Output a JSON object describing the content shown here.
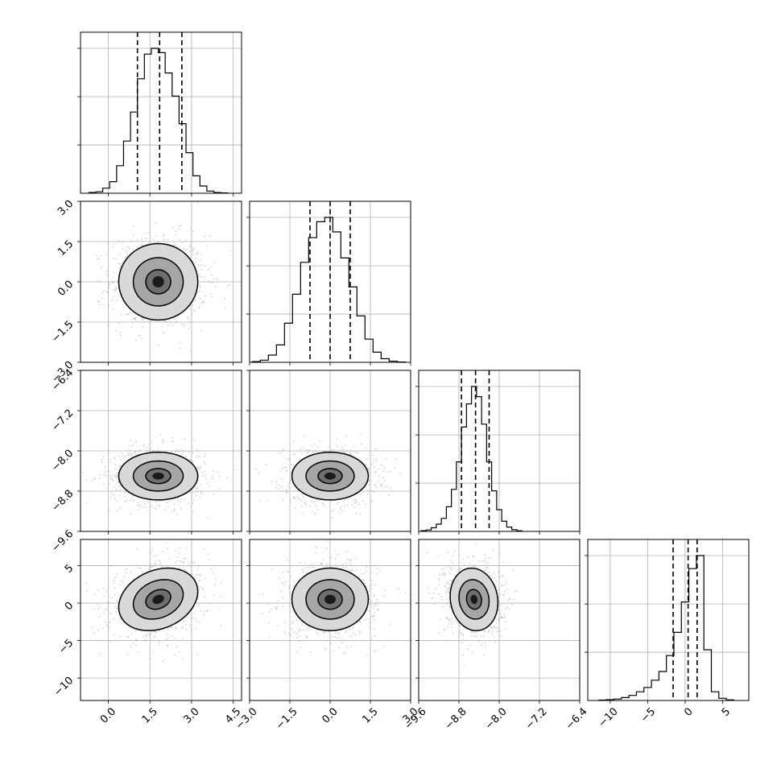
{
  "chart_data": {
    "type": "corner",
    "title": "",
    "parameters": [
      {
        "name": "",
        "range": [
          -1.0,
          4.8
        ],
        "ticks": [
          0.0,
          1.5,
          3.0,
          4.5
        ],
        "tick_labels": [
          "0.0",
          "1.5",
          "3.0",
          "4.5"
        ],
        "quantiles": [
          1.05,
          1.85,
          2.65
        ]
      },
      {
        "name": "",
        "range": [
          -3.0,
          3.0
        ],
        "ticks": [
          -3.0,
          -1.5,
          0.0,
          1.5,
          3.0
        ],
        "tick_labels": [
          "−3.0",
          "−1.5",
          "0.0",
          "1.5",
          "3.0"
        ],
        "quantiles": [
          -0.75,
          0.0,
          0.75
        ]
      },
      {
        "name": "",
        "range": [
          -9.6,
          -6.4
        ],
        "ticks": [
          -9.6,
          -8.8,
          -8.0,
          -7.2,
          -6.4
        ],
        "tick_labels": [
          "−9.6",
          "−8.8",
          "−8.0",
          "−7.2",
          "−6.4"
        ],
        "quantiles": [
          -8.75,
          -8.47,
          -8.2
        ]
      },
      {
        "name": "",
        "range": [
          -13.0,
          8.5
        ],
        "ticks": [
          -10,
          -5,
          0,
          5
        ],
        "tick_labels": [
          "−10",
          "−5",
          "0",
          "5"
        ],
        "quantiles": [
          -1.6,
          0.4,
          1.6
        ]
      }
    ],
    "histograms": [
      {
        "bin_edges": [
          -0.7,
          -0.45,
          -0.2,
          0.05,
          0.3,
          0.55,
          0.8,
          1.05,
          1.3,
          1.55,
          1.8,
          2.05,
          2.3,
          2.55,
          2.8,
          3.05,
          3.3,
          3.55,
          3.8,
          4.05,
          4.3
        ],
        "counts": [
          0.005,
          0.01,
          0.035,
          0.08,
          0.19,
          0.36,
          0.56,
          0.79,
          0.96,
          1.0,
          0.97,
          0.83,
          0.67,
          0.48,
          0.28,
          0.12,
          0.05,
          0.015,
          0.005,
          0.002
        ]
      },
      {
        "bin_edges": [
          -2.9,
          -2.6,
          -2.3,
          -2.0,
          -1.7,
          -1.4,
          -1.1,
          -0.8,
          -0.5,
          -0.2,
          0.1,
          0.4,
          0.7,
          1.0,
          1.3,
          1.6,
          1.9,
          2.2,
          2.5,
          2.8
        ],
        "counts": [
          0.005,
          0.015,
          0.05,
          0.12,
          0.27,
          0.47,
          0.69,
          0.86,
          0.97,
          1.0,
          0.9,
          0.72,
          0.52,
          0.32,
          0.16,
          0.07,
          0.025,
          0.008,
          0.002
        ]
      },
      {
        "bin_edges": [
          -9.55,
          -9.45,
          -9.35,
          -9.25,
          -9.15,
          -9.05,
          -8.95,
          -8.85,
          -8.75,
          -8.65,
          -8.55,
          -8.45,
          -8.35,
          -8.25,
          -8.15,
          -8.05,
          -7.95,
          -7.85,
          -7.75,
          -7.65,
          -7.55
        ],
        "counts": [
          0.005,
          0.01,
          0.025,
          0.05,
          0.09,
          0.17,
          0.29,
          0.48,
          0.72,
          0.88,
          1.0,
          0.93,
          0.74,
          0.48,
          0.28,
          0.15,
          0.07,
          0.03,
          0.012,
          0.004
        ]
      },
      {
        "bin_edges": [
          -11.5,
          -10.5,
          -9.5,
          -8.5,
          -7.5,
          -6.5,
          -5.5,
          -4.5,
          -3.5,
          -2.5,
          -1.5,
          -0.5,
          0.5,
          1.5,
          2.5,
          3.5,
          4.5,
          5.5,
          6.5
        ],
        "counts": [
          0.003,
          0.006,
          0.01,
          0.02,
          0.035,
          0.06,
          0.09,
          0.14,
          0.2,
          0.31,
          0.47,
          0.68,
          0.91,
          1.0,
          0.35,
          0.06,
          0.015,
          0.004
        ]
      }
    ],
    "panels_2d": [
      {
        "x": 0,
        "y": 1,
        "center": [
          1.8,
          0.0
        ],
        "sigma": [
          0.75,
          0.75
        ],
        "rho": 0.0,
        "contours": [
          0.6,
          1.2,
          1.9
        ]
      },
      {
        "x": 0,
        "y": 2,
        "center": [
          1.8,
          -8.5
        ],
        "sigma": [
          0.75,
          0.25
        ],
        "rho": 0.0,
        "contours": [
          0.6,
          1.2,
          1.9
        ]
      },
      {
        "x": 1,
        "y": 2,
        "center": [
          0.0,
          -8.5
        ],
        "sigma": [
          0.75,
          0.25
        ],
        "rho": 0.0,
        "contours": [
          0.6,
          1.2,
          1.9
        ]
      },
      {
        "x": 0,
        "y": 3,
        "center": [
          1.8,
          0.5
        ],
        "sigma": [
          0.75,
          2.2
        ],
        "rho": 0.25,
        "contours": [
          0.6,
          1.2,
          1.9
        ]
      },
      {
        "x": 1,
        "y": 3,
        "center": [
          0.0,
          0.5
        ],
        "sigma": [
          0.75,
          2.2
        ],
        "rho": 0.0,
        "contours": [
          0.6,
          1.2,
          1.9
        ]
      },
      {
        "x": 2,
        "y": 3,
        "center": [
          -8.5,
          0.5
        ],
        "sigma": [
          0.25,
          2.2
        ],
        "rho": -0.1,
        "contours": [
          0.6,
          1.2,
          1.9
        ]
      }
    ],
    "grid": true,
    "legend": false
  }
}
